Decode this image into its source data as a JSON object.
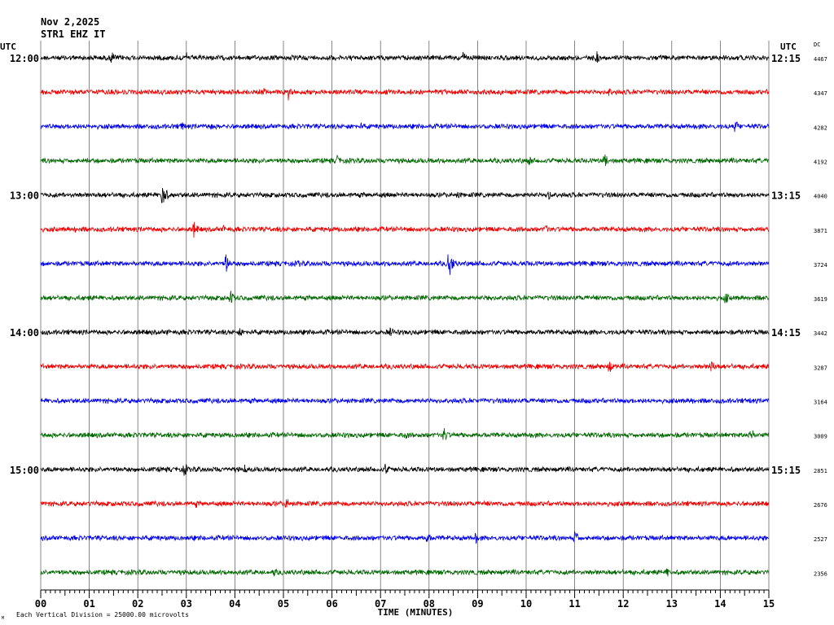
{
  "header": {
    "date": "Nov 2,2025",
    "station": "STR1 EHZ IT",
    "utc_left": "UTC",
    "utc_right": "UTC",
    "dc_label": "DC"
  },
  "footer": {
    "xlabel": "TIME (MINUTES)",
    "scale_note": "Each Vertical Division = 25000.00 microvolts",
    "corner_mark": "M"
  },
  "chart_data": {
    "type": "line",
    "title": "",
    "xlabel": "TIME (MINUTES)",
    "ylabel": "",
    "xlim": [
      0,
      15
    ],
    "x_ticks": [
      "00",
      "01",
      "02",
      "03",
      "04",
      "05",
      "06",
      "07",
      "08",
      "09",
      "10",
      "11",
      "12",
      "13",
      "14",
      "15"
    ],
    "grid": true,
    "trace_colors": [
      "#000000",
      "#ee0000",
      "#0000ee",
      "#006600"
    ],
    "left_time_labels": [
      {
        "row": 0,
        "label": "12:00"
      },
      {
        "row": 4,
        "label": "13:00"
      },
      {
        "row": 8,
        "label": "14:00"
      },
      {
        "row": 12,
        "label": "15:00"
      }
    ],
    "right_time_labels": [
      {
        "row": 0,
        "label": "12:15"
      },
      {
        "row": 4,
        "label": "13:15"
      },
      {
        "row": 8,
        "label": "14:15"
      },
      {
        "row": 12,
        "label": "15:15"
      }
    ],
    "dc_values": [
      "4467",
      "4347",
      "4282",
      "4192",
      "4040",
      "3871",
      "3724",
      "3619",
      "3442",
      "3287",
      "3164",
      "3009",
      "2851",
      "2676",
      "2527",
      "2356"
    ],
    "events": [
      [
        {
          "t": 1.45,
          "a": 10
        },
        {
          "t": 3.0,
          "a": 7
        },
        {
          "t": 8.7,
          "a": 8
        },
        {
          "t": 11.45,
          "a": 9
        }
      ],
      [
        {
          "t": 4.6,
          "a": 6
        },
        {
          "t": 5.1,
          "a": 10
        },
        {
          "t": 11.7,
          "a": 7
        }
      ],
      [
        {
          "t": 2.9,
          "a": 9
        },
        {
          "t": 3.5,
          "a": 7
        },
        {
          "t": 6.6,
          "a": 5
        },
        {
          "t": 14.3,
          "a": 9
        }
      ],
      [
        {
          "t": 6.1,
          "a": 8
        },
        {
          "t": 10.05,
          "a": 8
        },
        {
          "t": 11.6,
          "a": 12
        }
      ],
      [
        {
          "t": 2.5,
          "a": 20
        },
        {
          "t": 8.6,
          "a": 6
        },
        {
          "t": 10.45,
          "a": 8
        }
      ],
      [
        {
          "t": 0.7,
          "a": 6
        },
        {
          "t": 3.15,
          "a": 11
        },
        {
          "t": 3.75,
          "a": 6
        },
        {
          "t": 10.4,
          "a": 8
        }
      ],
      [
        {
          "t": 3.8,
          "a": 15
        },
        {
          "t": 5.3,
          "a": 5
        },
        {
          "t": 8.4,
          "a": 21
        }
      ],
      [
        {
          "t": 3.9,
          "a": 11
        },
        {
          "t": 9.2,
          "a": 7
        },
        {
          "t": 14.1,
          "a": 9
        }
      ],
      [
        {
          "t": 2.6,
          "a": 5
        },
        {
          "t": 4.1,
          "a": 7
        },
        {
          "t": 7.2,
          "a": 7
        }
      ],
      [
        {
          "t": 11.7,
          "a": 10
        },
        {
          "t": 13.8,
          "a": 11
        }
      ],
      [
        {
          "t": 13.4,
          "a": 6
        },
        {
          "t": 14.6,
          "a": 5
        }
      ],
      [
        {
          "t": 5.9,
          "a": 5
        },
        {
          "t": 7.5,
          "a": 7
        },
        {
          "t": 8.3,
          "a": 12
        },
        {
          "t": 14.6,
          "a": 12
        }
      ],
      [
        {
          "t": 2.95,
          "a": 10
        },
        {
          "t": 4.2,
          "a": 6
        },
        {
          "t": 7.1,
          "a": 8
        }
      ],
      [
        {
          "t": 3.2,
          "a": 5
        },
        {
          "t": 5.05,
          "a": 9
        }
      ],
      [
        {
          "t": 7.95,
          "a": 9
        },
        {
          "t": 8.95,
          "a": 8
        },
        {
          "t": 11.0,
          "a": 12
        }
      ],
      [
        {
          "t": 4.8,
          "a": 6
        },
        {
          "t": 12.9,
          "a": 7
        }
      ]
    ]
  }
}
